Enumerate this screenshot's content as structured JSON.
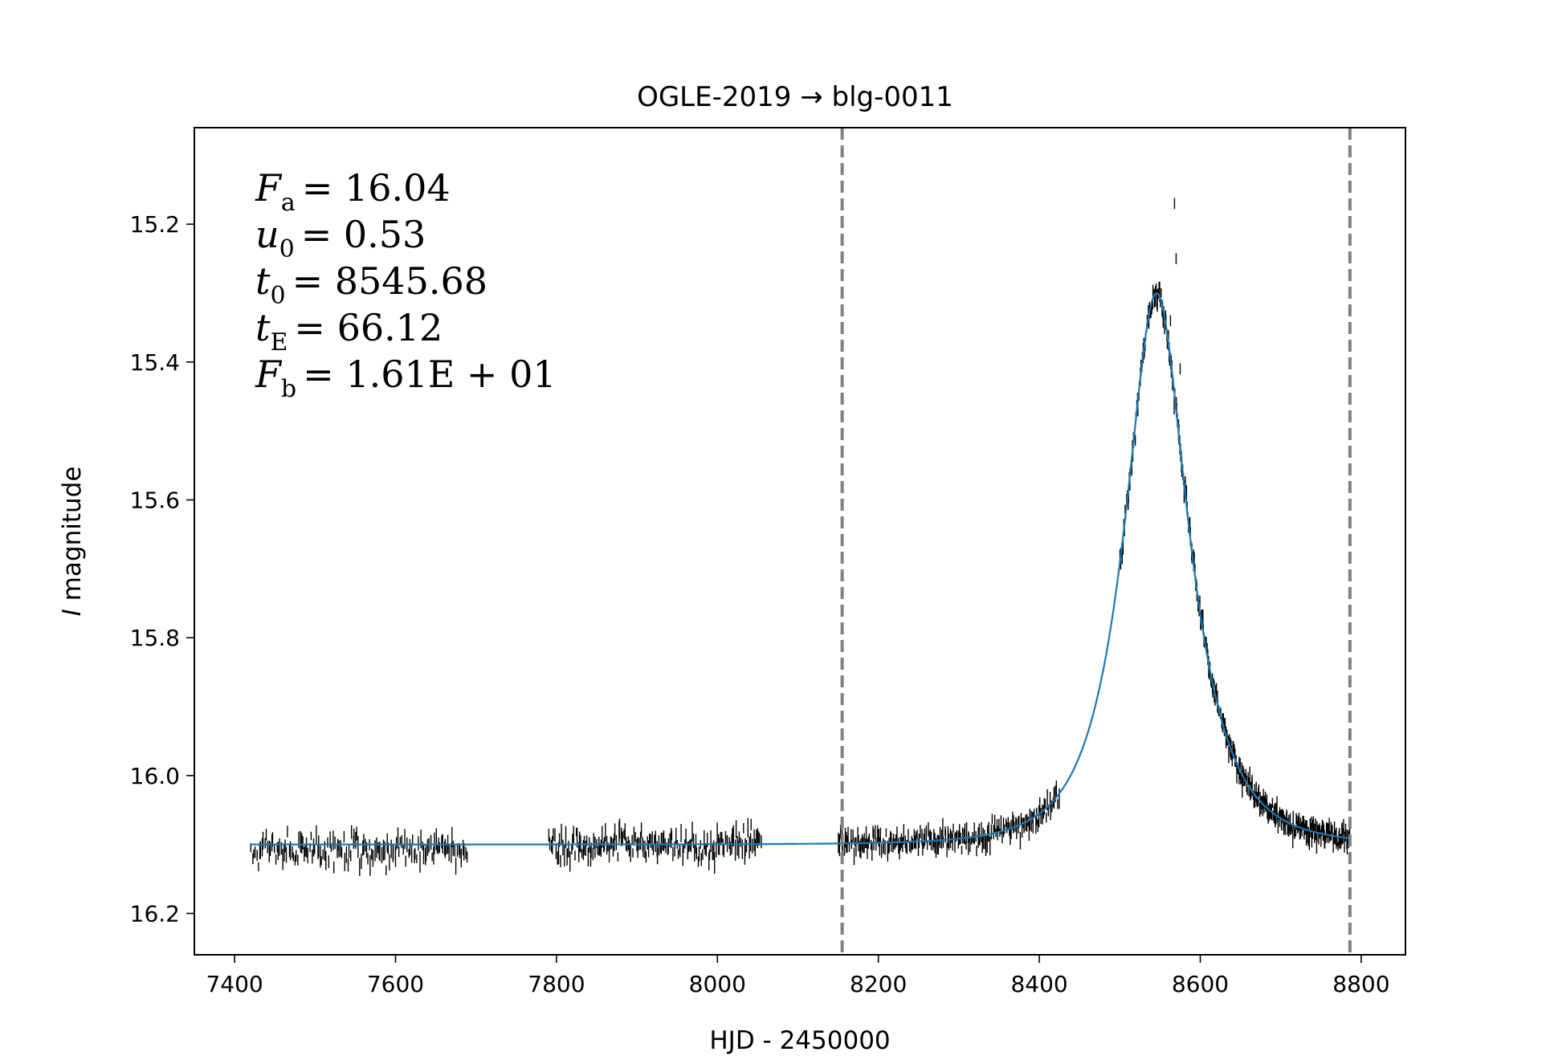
{
  "chart_data": {
    "type": "scatter",
    "title": "OGLE-2019 → blg-0011",
    "xlabel": "HJD - 2450000",
    "ylabel_symbol": "I",
    "ylabel_text": "magnitude",
    "xlim": [
      7350,
      8855
    ],
    "ylim": [
      16.26,
      15.06
    ],
    "y_inverted": true,
    "x_ticks": [
      7400,
      7600,
      7800,
      8000,
      8200,
      8400,
      8600,
      8800
    ],
    "x_tick_labels": [
      "7400",
      "7600",
      "7800",
      "8000",
      "8200",
      "8400",
      "8600",
      "8800"
    ],
    "y_ticks": [
      15.2,
      15.4,
      15.6,
      15.8,
      16.0,
      16.2
    ],
    "y_tick_labels": [
      "15.2",
      "15.4",
      "15.6",
      "15.8",
      "16.0",
      "16.2"
    ],
    "grid": false,
    "vlines": [
      8155,
      8786
    ],
    "vline_color": "#808080",
    "observation_color": "#000000",
    "model_color": "#1f77b4",
    "parameters": {
      "Fa": {
        "symbol": "F",
        "sub": "a",
        "value": "16.04"
      },
      "u0": {
        "symbol": "u",
        "sub": "0",
        "value": "0.53"
      },
      "t0": {
        "symbol": "t",
        "sub": "0",
        "value": "8545.68"
      },
      "tE": {
        "symbol": "t",
        "sub": "E",
        "value": "66.12"
      },
      "Fb": {
        "symbol": "F",
        "sub": "b",
        "value": "1.61E + 01"
      }
    },
    "model": {
      "name": "PSPL fit",
      "baseline_mag": 16.1,
      "peak_mag": 15.3,
      "t0": 8545.68,
      "tE": 66.12,
      "u0": 0.53,
      "x_range": [
        7420,
        8786
      ]
    },
    "observations": {
      "seasons": [
        {
          "x_range": [
            7420,
            7690
          ],
          "mean": 16.108,
          "spread": 0.012,
          "n": 160
        },
        {
          "x_range": [
            7790,
            8055
          ],
          "mean": 16.1,
          "spread": 0.011,
          "n": 180
        },
        {
          "x_range": [
            8150,
            8425
          ],
          "mean": 16.1,
          "spread": 0.009,
          "n": 200,
          "follows_model": true
        },
        {
          "x_range": [
            8500,
            8786
          ],
          "mean": 16.0,
          "spread": 0.008,
          "n": 320,
          "follows_model": true
        }
      ],
      "outliers": [
        {
          "x": 8568,
          "y": 15.17
        },
        {
          "x": 8570,
          "y": 15.25
        },
        {
          "x": 8563,
          "y": 15.34
        },
        {
          "x": 8575,
          "y": 15.41
        },
        {
          "x": 8785,
          "y": 15.99
        }
      ]
    }
  }
}
